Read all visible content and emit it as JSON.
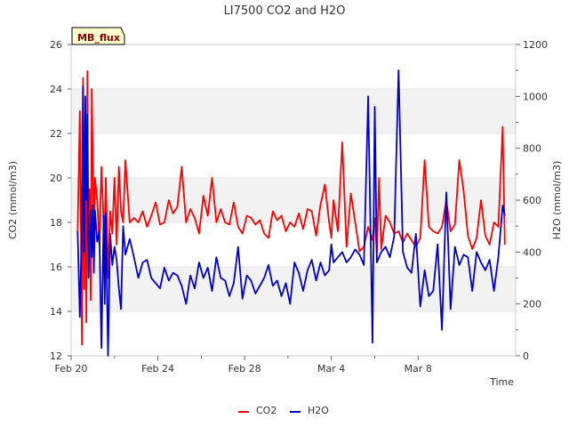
{
  "chart_data": {
    "type": "line",
    "title": "LI7500 CO2 and H2O",
    "xlabel": "Time",
    "ylabel_left": "CO2 (mmol/m3)",
    "ylabel_right": "H2O (mmol/m3)",
    "site_tag": "MB_flux",
    "xlim": [
      0,
      20.5
    ],
    "x_tick_labels": [
      {
        "x": 0,
        "label": "Feb 20"
      },
      {
        "x": 4,
        "label": "Feb 24"
      },
      {
        "x": 8,
        "label": "Feb 28"
      },
      {
        "x": 12,
        "label": "Mar 4"
      },
      {
        "x": 16,
        "label": "Mar 8"
      }
    ],
    "ylim_left": [
      12,
      26
    ],
    "yticks_left": [
      12,
      14,
      16,
      18,
      20,
      22,
      24,
      26
    ],
    "ylim_right": [
      0,
      1200
    ],
    "yticks_right": [
      0,
      200,
      400,
      600,
      800,
      1000,
      1200
    ],
    "grid": "horizontal bands",
    "legend_placement": "bottom",
    "series": [
      {
        "name": "CO2",
        "color": "#ff0000",
        "axis": "left",
        "x": [
          0.3,
          0.4,
          0.5,
          0.55,
          0.6,
          0.65,
          0.7,
          0.75,
          0.8,
          0.85,
          0.9,
          0.95,
          1.0,
          1.05,
          1.1,
          1.2,
          1.3,
          1.4,
          1.5,
          1.55,
          1.6,
          1.7,
          1.8,
          1.9,
          2.0,
          2.1,
          2.2,
          2.3,
          2.4,
          2.5,
          2.7,
          2.9,
          3.1,
          3.3,
          3.5,
          3.7,
          3.9,
          4.1,
          4.3,
          4.5,
          4.7,
          4.9,
          5.1,
          5.3,
          5.5,
          5.7,
          5.9,
          6.1,
          6.3,
          6.5,
          6.7,
          6.9,
          7.1,
          7.3,
          7.5,
          7.7,
          7.9,
          8.1,
          8.3,
          8.5,
          8.7,
          8.9,
          9.1,
          9.3,
          9.5,
          9.7,
          9.9,
          10.1,
          10.3,
          10.5,
          10.7,
          10.9,
          11.1,
          11.3,
          11.5,
          11.7,
          11.9,
          12.0,
          12.1,
          12.3,
          12.5,
          12.7,
          12.9,
          13.1,
          13.3,
          13.5,
          13.7,
          13.9,
          14.0,
          14.1,
          14.2,
          14.3,
          14.5,
          14.7,
          14.9,
          15.1,
          15.3,
          15.5,
          15.7,
          15.9,
          16.1,
          16.3,
          16.5,
          16.7,
          16.9,
          17.1,
          17.3,
          17.5,
          17.7,
          17.9,
          18.1,
          18.3,
          18.5,
          18.7,
          18.9,
          19.1,
          19.3,
          19.5,
          19.7,
          19.9,
          20.0
        ],
        "y": [
          17.5,
          23.0,
          12.5,
          24.5,
          15.0,
          22.0,
          13.5,
          24.8,
          16.0,
          19.5,
          14.5,
          24.0,
          20.5,
          17.5,
          20.0,
          19.0,
          17.0,
          20.5,
          18.0,
          17.5,
          20.0,
          15.5,
          18.5,
          17.5,
          20.0,
          17.0,
          20.5,
          18.5,
          18.0,
          20.8,
          18.0,
          18.2,
          18.0,
          18.5,
          17.8,
          18.3,
          18.9,
          17.9,
          18.0,
          19.0,
          18.4,
          18.7,
          20.5,
          18.0,
          18.6,
          18.2,
          17.5,
          19.2,
          18.3,
          20.0,
          18.0,
          18.6,
          18.0,
          17.9,
          18.9,
          17.8,
          17.5,
          18.3,
          18.2,
          17.9,
          18.1,
          17.5,
          17.3,
          18.5,
          18.1,
          18.3,
          17.6,
          18.0,
          17.8,
          18.4,
          17.7,
          18.6,
          18.5,
          17.4,
          18.8,
          19.7,
          18.0,
          17.3,
          19.0,
          17.6,
          21.6,
          16.9,
          19.3,
          18.0,
          16.7,
          16.9,
          17.8,
          17.2,
          18.2,
          16.6,
          20.0,
          16.8,
          18.3,
          18.0,
          17.5,
          17.6,
          17.1,
          17.5,
          17.2,
          16.9,
          17.3,
          20.8,
          17.8,
          17.6,
          17.5,
          17.8,
          19.0,
          17.6,
          17.9,
          20.8,
          19.4,
          17.4,
          16.8,
          17.3,
          19.0,
          17.4,
          17.0,
          18.0,
          17.8,
          22.3,
          17.0
        ]
      },
      {
        "name": "H2O",
        "color": "#0000cc",
        "axis": "right",
        "x": [
          0.3,
          0.4,
          0.5,
          0.55,
          0.6,
          0.65,
          0.7,
          0.75,
          0.8,
          0.85,
          0.9,
          0.95,
          1.0,
          1.05,
          1.1,
          1.2,
          1.3,
          1.4,
          1.5,
          1.55,
          1.6,
          1.7,
          1.8,
          1.9,
          2.0,
          2.1,
          2.2,
          2.3,
          2.4,
          2.5,
          2.7,
          2.9,
          3.1,
          3.3,
          3.5,
          3.7,
          3.9,
          4.1,
          4.3,
          4.5,
          4.7,
          4.9,
          5.1,
          5.3,
          5.5,
          5.7,
          5.9,
          6.1,
          6.3,
          6.5,
          6.7,
          6.9,
          7.1,
          7.3,
          7.5,
          7.7,
          7.9,
          8.1,
          8.3,
          8.5,
          8.7,
          8.9,
          9.1,
          9.3,
          9.5,
          9.7,
          9.9,
          10.1,
          10.3,
          10.5,
          10.7,
          10.9,
          11.1,
          11.3,
          11.5,
          11.7,
          11.9,
          12.0,
          12.1,
          12.3,
          12.5,
          12.7,
          12.9,
          13.1,
          13.3,
          13.5,
          13.7,
          13.9,
          14.0,
          14.1,
          14.2,
          14.3,
          14.5,
          14.7,
          14.9,
          15.1,
          15.3,
          15.5,
          15.7,
          15.9,
          16.1,
          16.3,
          16.5,
          16.7,
          16.9,
          17.1,
          17.3,
          17.5,
          17.7,
          17.9,
          18.1,
          18.3,
          18.5,
          18.7,
          18.9,
          19.1,
          19.3,
          19.5,
          19.7,
          19.9,
          20.0
        ],
        "y": [
          480,
          150,
          520,
          1040,
          400,
          1000,
          600,
          930,
          300,
          450,
          560,
          380,
          580,
          320,
          560,
          440,
          480,
          30,
          540,
          200,
          550,
          0,
          470,
          350,
          420,
          370,
          260,
          180,
          500,
          390,
          450,
          380,
          300,
          360,
          370,
          300,
          280,
          260,
          340,
          290,
          320,
          310,
          270,
          200,
          310,
          260,
          360,
          300,
          340,
          250,
          380,
          300,
          290,
          230,
          280,
          420,
          220,
          310,
          290,
          240,
          270,
          300,
          350,
          270,
          290,
          230,
          280,
          200,
          360,
          320,
          250,
          330,
          370,
          290,
          360,
          310,
          330,
          430,
          360,
          380,
          400,
          360,
          380,
          410,
          390,
          350,
          1000,
          50,
          960,
          360,
          380,
          400,
          420,
          380,
          460,
          1100,
          400,
          340,
          320,
          470,
          190,
          330,
          230,
          250,
          430,
          100,
          630,
          180,
          420,
          350,
          390,
          380,
          250,
          400,
          360,
          330,
          370,
          250,
          380,
          580,
          540
        ]
      }
    ]
  }
}
